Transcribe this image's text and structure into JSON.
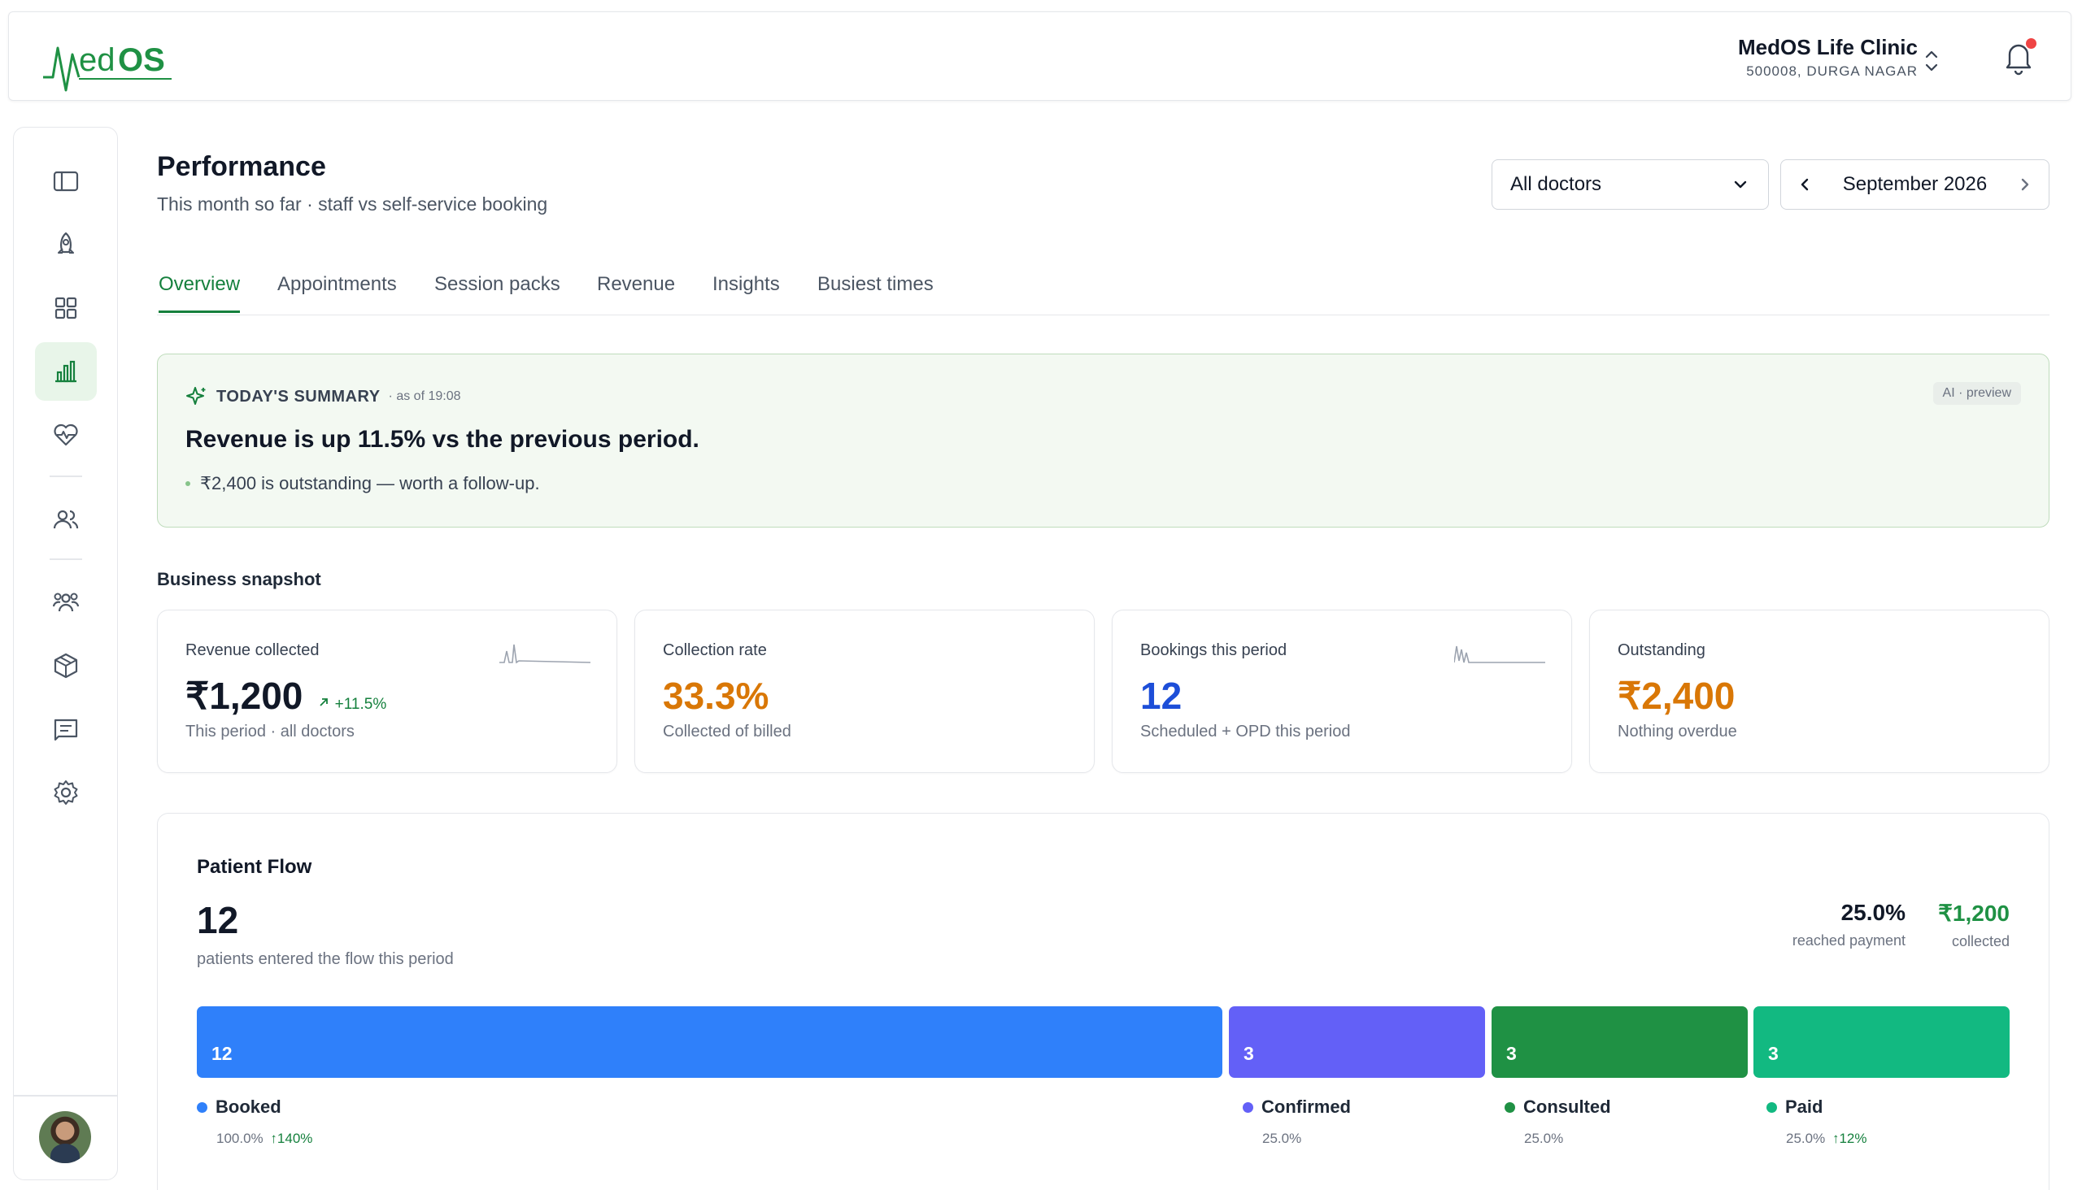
{
  "header": {
    "logo_text": "MedOS",
    "clinic_name": "MedOS Life Clinic",
    "clinic_address": "500008, DURGA NAGAR"
  },
  "sidebar": {
    "items": [
      {
        "icon": "sidebar-toggle-icon"
      },
      {
        "icon": "rocket-icon"
      },
      {
        "icon": "grid-icon"
      },
      {
        "icon": "bar-chart-icon",
        "active": true
      },
      {
        "icon": "heart-pulse-icon"
      },
      {
        "icon": "users-icon"
      },
      {
        "icon": "team-icon"
      },
      {
        "icon": "box-icon"
      },
      {
        "icon": "receipt-icon"
      },
      {
        "icon": "settings-icon"
      }
    ]
  },
  "page": {
    "title": "Performance",
    "subtitle": "This month so far · staff vs self-service booking",
    "doctor_filter": "All doctors",
    "month": "September 2026"
  },
  "tabs": [
    "Overview",
    "Appointments",
    "Session packs",
    "Revenue",
    "Insights",
    "Busiest times"
  ],
  "summary": {
    "title": "TODAY'S SUMMARY",
    "time": "· as of 19:08",
    "badge": "AI · preview",
    "headline": "Revenue is up 11.5% vs the previous period.",
    "bullet": "₹2,400 is outstanding — worth a follow-up."
  },
  "snapshot": {
    "title": "Business snapshot",
    "cards": [
      {
        "label": "Revenue collected",
        "value": "₹1,200",
        "delta": "+11.5%",
        "sub": "This period · all doctors",
        "color": "#111827"
      },
      {
        "label": "Collection rate",
        "value": "33.3%",
        "sub": "Collected of billed",
        "color": "#d97706"
      },
      {
        "label": "Bookings this period",
        "value": "12",
        "sub": "Scheduled + OPD this period",
        "color": "#1d4ed8"
      },
      {
        "label": "Outstanding",
        "value": "₹2,400",
        "sub": "Nothing overdue",
        "color": "#d97706"
      }
    ]
  },
  "flow": {
    "title": "Patient Flow",
    "total": "12",
    "total_sub": "patients entered the flow this period",
    "reached_payment": "25.0%",
    "reached_payment_label": "reached payment",
    "collected": "₹1,200",
    "collected_label": "collected",
    "stages": [
      {
        "name": "Booked",
        "count": "12",
        "pct": "100.0%",
        "change": "↑140%",
        "color": "#2f80fa"
      },
      {
        "name": "Confirmed",
        "count": "3",
        "pct": "25.0%",
        "change": "",
        "color": "#6360f7"
      },
      {
        "name": "Consulted",
        "count": "3",
        "pct": "25.0%",
        "change": "",
        "color": "#1f9144"
      },
      {
        "name": "Paid",
        "count": "3",
        "pct": "25.0%",
        "change": "↑12%",
        "color": "#12b981"
      }
    ]
  }
}
